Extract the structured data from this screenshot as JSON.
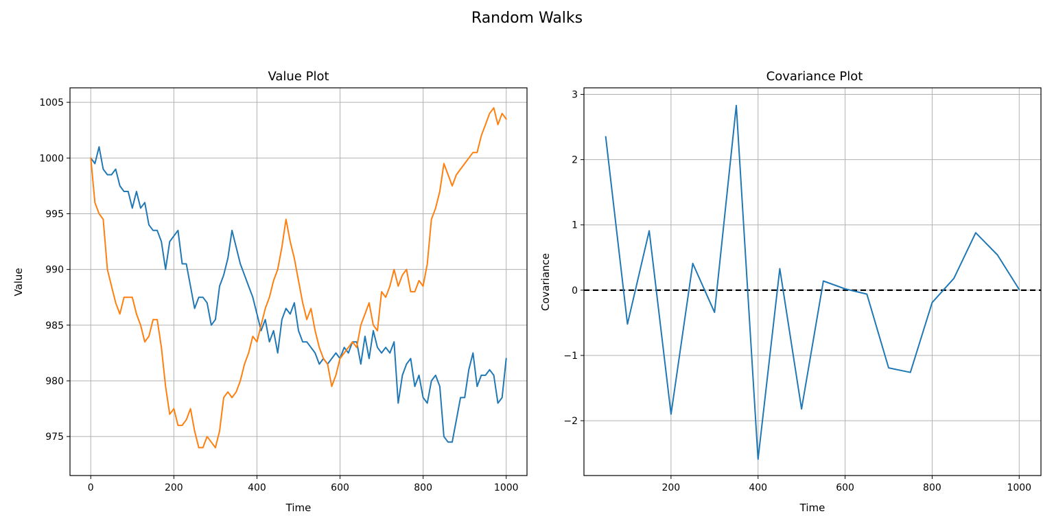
{
  "figure": {
    "title": "Random Walks"
  },
  "chart_data": [
    {
      "type": "line",
      "title": "Value Plot",
      "xlabel": "Time",
      "ylabel": "Value",
      "xlim": [
        -50,
        1050
      ],
      "ylim": [
        971.5,
        1006.3
      ],
      "xticks": [
        0,
        200,
        400,
        600,
        800,
        1000
      ],
      "yticks": [
        975,
        980,
        985,
        990,
        995,
        1000,
        1005
      ],
      "grid": true,
      "series": [
        {
          "color": "#1f77b4",
          "x": [
            0,
            10,
            20,
            30,
            40,
            50,
            60,
            70,
            80,
            90,
            100,
            110,
            120,
            130,
            140,
            150,
            160,
            170,
            180,
            190,
            200,
            210,
            220,
            230,
            240,
            250,
            260,
            270,
            280,
            290,
            300,
            310,
            320,
            330,
            340,
            350,
            360,
            370,
            380,
            390,
            400,
            410,
            420,
            430,
            440,
            450,
            460,
            470,
            480,
            490,
            500,
            510,
            520,
            530,
            540,
            550,
            560,
            570,
            580,
            590,
            600,
            610,
            620,
            630,
            640,
            650,
            660,
            670,
            680,
            690,
            700,
            710,
            720,
            730,
            740,
            750,
            760,
            770,
            780,
            790,
            800,
            810,
            820,
            830,
            840,
            850,
            860,
            870,
            880,
            890,
            900,
            910,
            920,
            930,
            940,
            950,
            960,
            970,
            980,
            990,
            1000
          ],
          "y": [
            1000.0,
            999.5,
            1001.0,
            999.0,
            998.5,
            998.5,
            999.0,
            997.5,
            997.0,
            997.0,
            995.5,
            997.0,
            995.5,
            996.0,
            994.0,
            993.5,
            993.5,
            992.5,
            990.0,
            992.5,
            993.0,
            993.5,
            990.5,
            990.5,
            988.5,
            986.5,
            987.5,
            987.5,
            987.0,
            985.0,
            985.5,
            988.5,
            989.5,
            991.0,
            993.5,
            992.0,
            990.5,
            989.5,
            988.5,
            987.5,
            986.0,
            984.5,
            985.5,
            983.5,
            984.5,
            982.5,
            985.5,
            986.5,
            986.0,
            987.0,
            984.5,
            983.5,
            983.5,
            983.0,
            982.5,
            981.5,
            982.0,
            981.5,
            982.0,
            982.5,
            982.0,
            983.0,
            982.5,
            983.5,
            983.5,
            981.5,
            984.0,
            982.0,
            984.5,
            983.0,
            982.5,
            983.0,
            982.5,
            983.5,
            978.0,
            980.5,
            981.5,
            982.0,
            979.5,
            980.5,
            978.5,
            978.0,
            980.0,
            980.5,
            979.5,
            975.0,
            974.5,
            974.5,
            976.5,
            978.5,
            978.5,
            981.0,
            982.5,
            979.5,
            980.5,
            980.5,
            981.0,
            980.5,
            978.0,
            978.5,
            982.0
          ]
        },
        {
          "color": "#ff7f0e",
          "x": [
            0,
            10,
            20,
            30,
            40,
            50,
            60,
            70,
            80,
            90,
            100,
            110,
            120,
            130,
            140,
            150,
            160,
            170,
            180,
            190,
            200,
            210,
            220,
            230,
            240,
            250,
            260,
            270,
            280,
            290,
            300,
            310,
            320,
            330,
            340,
            350,
            360,
            370,
            380,
            390,
            400,
            410,
            420,
            430,
            440,
            450,
            460,
            470,
            480,
            490,
            500,
            510,
            520,
            530,
            540,
            550,
            560,
            570,
            580,
            590,
            600,
            610,
            620,
            630,
            640,
            650,
            660,
            670,
            680,
            690,
            700,
            710,
            720,
            730,
            740,
            750,
            760,
            770,
            780,
            790,
            800,
            810,
            820,
            830,
            840,
            850,
            860,
            870,
            880,
            890,
            900,
            910,
            920,
            930,
            940,
            950,
            960,
            970,
            980,
            990,
            1000
          ],
          "y": [
            1000.0,
            996.0,
            995.0,
            994.5,
            990.0,
            988.5,
            987.0,
            986.0,
            987.5,
            987.5,
            987.5,
            986.0,
            985.0,
            983.5,
            984.0,
            985.5,
            985.5,
            983.0,
            979.5,
            977.0,
            977.5,
            976.0,
            976.0,
            976.5,
            977.5,
            975.5,
            974.0,
            974.0,
            975.0,
            974.5,
            974.0,
            975.5,
            978.5,
            979.0,
            978.5,
            979.0,
            980.0,
            981.5,
            982.5,
            984.0,
            983.5,
            985.0,
            986.5,
            987.5,
            989.0,
            990.0,
            992.0,
            994.5,
            992.5,
            991.0,
            989.0,
            987.0,
            985.5,
            986.5,
            984.5,
            983.0,
            982.0,
            981.5,
            979.5,
            980.5,
            982.0,
            982.5,
            983.0,
            983.5,
            983.0,
            985.0,
            986.0,
            987.0,
            985.0,
            984.5,
            988.0,
            987.5,
            988.5,
            990.0,
            988.5,
            989.5,
            990.0,
            988.0,
            988.0,
            989.0,
            988.5,
            990.5,
            994.5,
            995.5,
            997.0,
            999.5,
            998.5,
            997.5,
            998.5,
            999.0,
            999.5,
            1000.0,
            1000.5,
            1000.5,
            1002.0,
            1003.0,
            1004.0,
            1004.5,
            1003.0,
            1004.0,
            1003.5
          ]
        }
      ]
    },
    {
      "type": "line",
      "title": "Covariance Plot",
      "xlabel": "Time",
      "ylabel": "Covariance",
      "xlim": [
        0,
        1050
      ],
      "ylim": [
        -2.84,
        3.1
      ],
      "xticks": [
        200,
        400,
        600,
        800,
        1000
      ],
      "yticks": [
        -2,
        -1,
        0,
        1,
        2,
        3
      ],
      "ytick_labels": [
        "−2",
        "−1",
        "0",
        "1",
        "2",
        "3"
      ],
      "grid": true,
      "hline": {
        "y": 0,
        "style": "dashed",
        "color": "#000000"
      },
      "series": [
        {
          "color": "#1f77b4",
          "x": [
            50,
            100,
            150,
            200,
            250,
            300,
            350,
            400,
            450,
            500,
            550,
            600,
            650,
            700,
            750,
            800,
            850,
            900,
            950,
            1000
          ],
          "y": [
            2.35,
            -0.52,
            0.91,
            -1.9,
            0.41,
            -0.34,
            2.83,
            -2.59,
            0.33,
            -1.82,
            0.14,
            0.02,
            -0.06,
            -1.19,
            -1.26,
            -0.19,
            0.18,
            0.88,
            0.54,
            0.01
          ]
        }
      ]
    }
  ]
}
